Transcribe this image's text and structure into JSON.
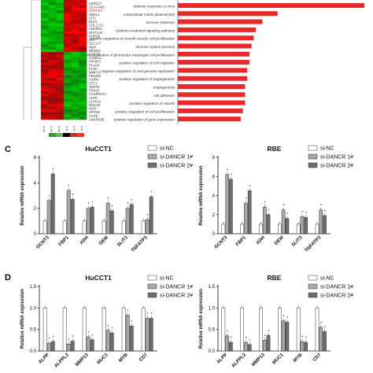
{
  "heatmap": {
    "gene_labels": [
      "LRRC17",
      "CEACAM1",
      "TNFAIP3",
      "OBSL1",
      "CFH",
      "ELF3",
      "COL17A1",
      "ANKRD1",
      "HIST1H4",
      "DHRS9",
      "CD7",
      "SLC1A7",
      "MDK",
      "BRWD1",
      "PDE7B",
      "COBLL1",
      "PIK3IP1",
      "PLAC8",
      "FLNC",
      "MMP13",
      "PDLIM2",
      "ASPM",
      "STC1",
      "TENT5",
      "TEN15",
      "CASP8AP2",
      "ALPP",
      "ALPPL2",
      "MUC16",
      "MYB",
      "SPON2",
      "HYPE",
      "ANKRD36"
    ],
    "sample_labels": [
      "sh-1",
      "sh-2",
      "sh-3",
      "si-1",
      "si-2",
      "si-3"
    ],
    "colorbar_colors": [
      "#2ca02c",
      "#66b366",
      "#000000",
      "#d62728",
      "#ff2f2f"
    ]
  },
  "go_terms": {
    "bar_color": "#e8292c",
    "chart_data": {
      "type": "bar",
      "orientation": "horizontal",
      "categories": [
        "defense response to virus",
        "extracellular matrix disassembly",
        "immune response",
        "cytokine-mediated signaling pathway",
        "positive regulation of smooth muscle cell proliferation",
        "immune system process",
        "positive regulation of glomerular mesangial cell proliferation",
        "positive regulation of cell migration",
        "negative regulation of viral genome replication",
        "positive regulation of angiogenesis",
        "angiogenesis",
        "cell adhesion",
        "positive regulation of mitosis",
        "positive regulation of cell proliferation",
        "positive regulation of gene expression"
      ],
      "values": [
        8.6,
        4.6,
        3.9,
        3.6,
        3.5,
        3.4,
        3.3,
        3.3,
        3.2,
        3.2,
        3.1,
        3.1,
        3.1,
        3.0,
        2.9
      ],
      "xlim": [
        0,
        9
      ]
    }
  },
  "panel_c": {
    "letter": "C",
    "legend": [
      "si-NC",
      "si-DANCR 1#",
      "si-DANCR 2#"
    ],
    "colors": [
      "#ffffff",
      "#a8a8a8",
      "#6e6e6e"
    ],
    "chart_data": [
      {
        "type": "bar",
        "title": "HuCCT1",
        "ylabel": "Relative mRNA expression",
        "ylim": [
          0,
          6
        ],
        "yticks": [
          "0",
          "2",
          "4",
          "6"
        ],
        "categories": [
          "GCNT3",
          "FBP1",
          "XDH",
          "GEM",
          "SLIT3",
          "TNFATP3"
        ],
        "series": [
          {
            "name": "si-NC",
            "values": [
              1,
              1,
              1,
              1,
              1,
              1
            ]
          },
          {
            "name": "si-DANCR 1#",
            "values": [
              2.6,
              3.4,
              2.0,
              2.4,
              2.0,
              1.1
            ]
          },
          {
            "name": "si-DANCR 2#",
            "values": [
              4.7,
              2.7,
              2.1,
              1.8,
              2.3,
              2.9
            ]
          }
        ]
      },
      {
        "type": "bar",
        "title": "RBE",
        "ylabel": "Relative mRNA expression",
        "ylim": [
          0,
          8
        ],
        "yticks": [
          "0",
          "2",
          "4",
          "6",
          "8"
        ],
        "categories": [
          "GCNT3",
          "FBP1",
          "XDH",
          "GEM",
          "SLIT3",
          "TNFATP3"
        ],
        "series": [
          {
            "name": "si-NC",
            "values": [
              1,
              1,
              1,
              1,
              1,
              1
            ]
          },
          {
            "name": "si-DANCR 1#",
            "values": [
              6.2,
              3.2,
              2.8,
              2.5,
              1.8,
              2.5
            ]
          },
          {
            "name": "si-DANCR 2#",
            "values": [
              5.7,
              4.5,
              2.0,
              1.6,
              1.7,
              1.9
            ]
          }
        ]
      }
    ]
  },
  "panel_d": {
    "letter": "D",
    "legend": [
      "si-NC",
      "si-DANCR 1#",
      "si-DANCR 2#"
    ],
    "colors": [
      "#ffffff",
      "#a8a8a8",
      "#6e6e6e"
    ],
    "chart_data": [
      {
        "type": "bar",
        "title": "HuCCT1",
        "ylabel": "Relative mRNA expression",
        "ylim": [
          0,
          1.5
        ],
        "yticks": [
          "0.0",
          "0.5",
          "1.0",
          "1.5"
        ],
        "categories": [
          "ALPP",
          "ALPPL2",
          "MMP13",
          "MUC1",
          "MYB",
          "CD7"
        ],
        "series": [
          {
            "name": "si-NC",
            "values": [
              1,
              1,
              1,
              1,
              1,
              1
            ]
          },
          {
            "name": "si-DANCR 1#",
            "values": [
              0.18,
              0.16,
              0.33,
              0.48,
              0.83,
              0.76
            ]
          },
          {
            "name": "si-DANCR 2#",
            "values": [
              0.22,
              0.23,
              0.26,
              0.42,
              0.58,
              0.76
            ]
          }
        ]
      },
      {
        "type": "bar",
        "title": "RBE",
        "ylabel": "Relative mRNA expression",
        "ylim": [
          0,
          1.5
        ],
        "yticks": [
          "0.0",
          "0.5",
          "1.0",
          "1.5"
        ],
        "categories": [
          "ALPP",
          "ALPPL2",
          "MMP13",
          "MUC1",
          "MYB",
          "CD7"
        ],
        "series": [
          {
            "name": "si-NC",
            "values": [
              1,
              1,
              1,
              1,
              1,
              1
            ]
          },
          {
            "name": "si-DANCR 1#",
            "values": [
              0.35,
              0.2,
              0.25,
              0.7,
              0.22,
              0.55
            ]
          },
          {
            "name": "si-DANCR 2#",
            "values": [
              0.2,
              0.15,
              0.36,
              0.67,
              0.2,
              0.45
            ]
          }
        ]
      }
    ]
  }
}
